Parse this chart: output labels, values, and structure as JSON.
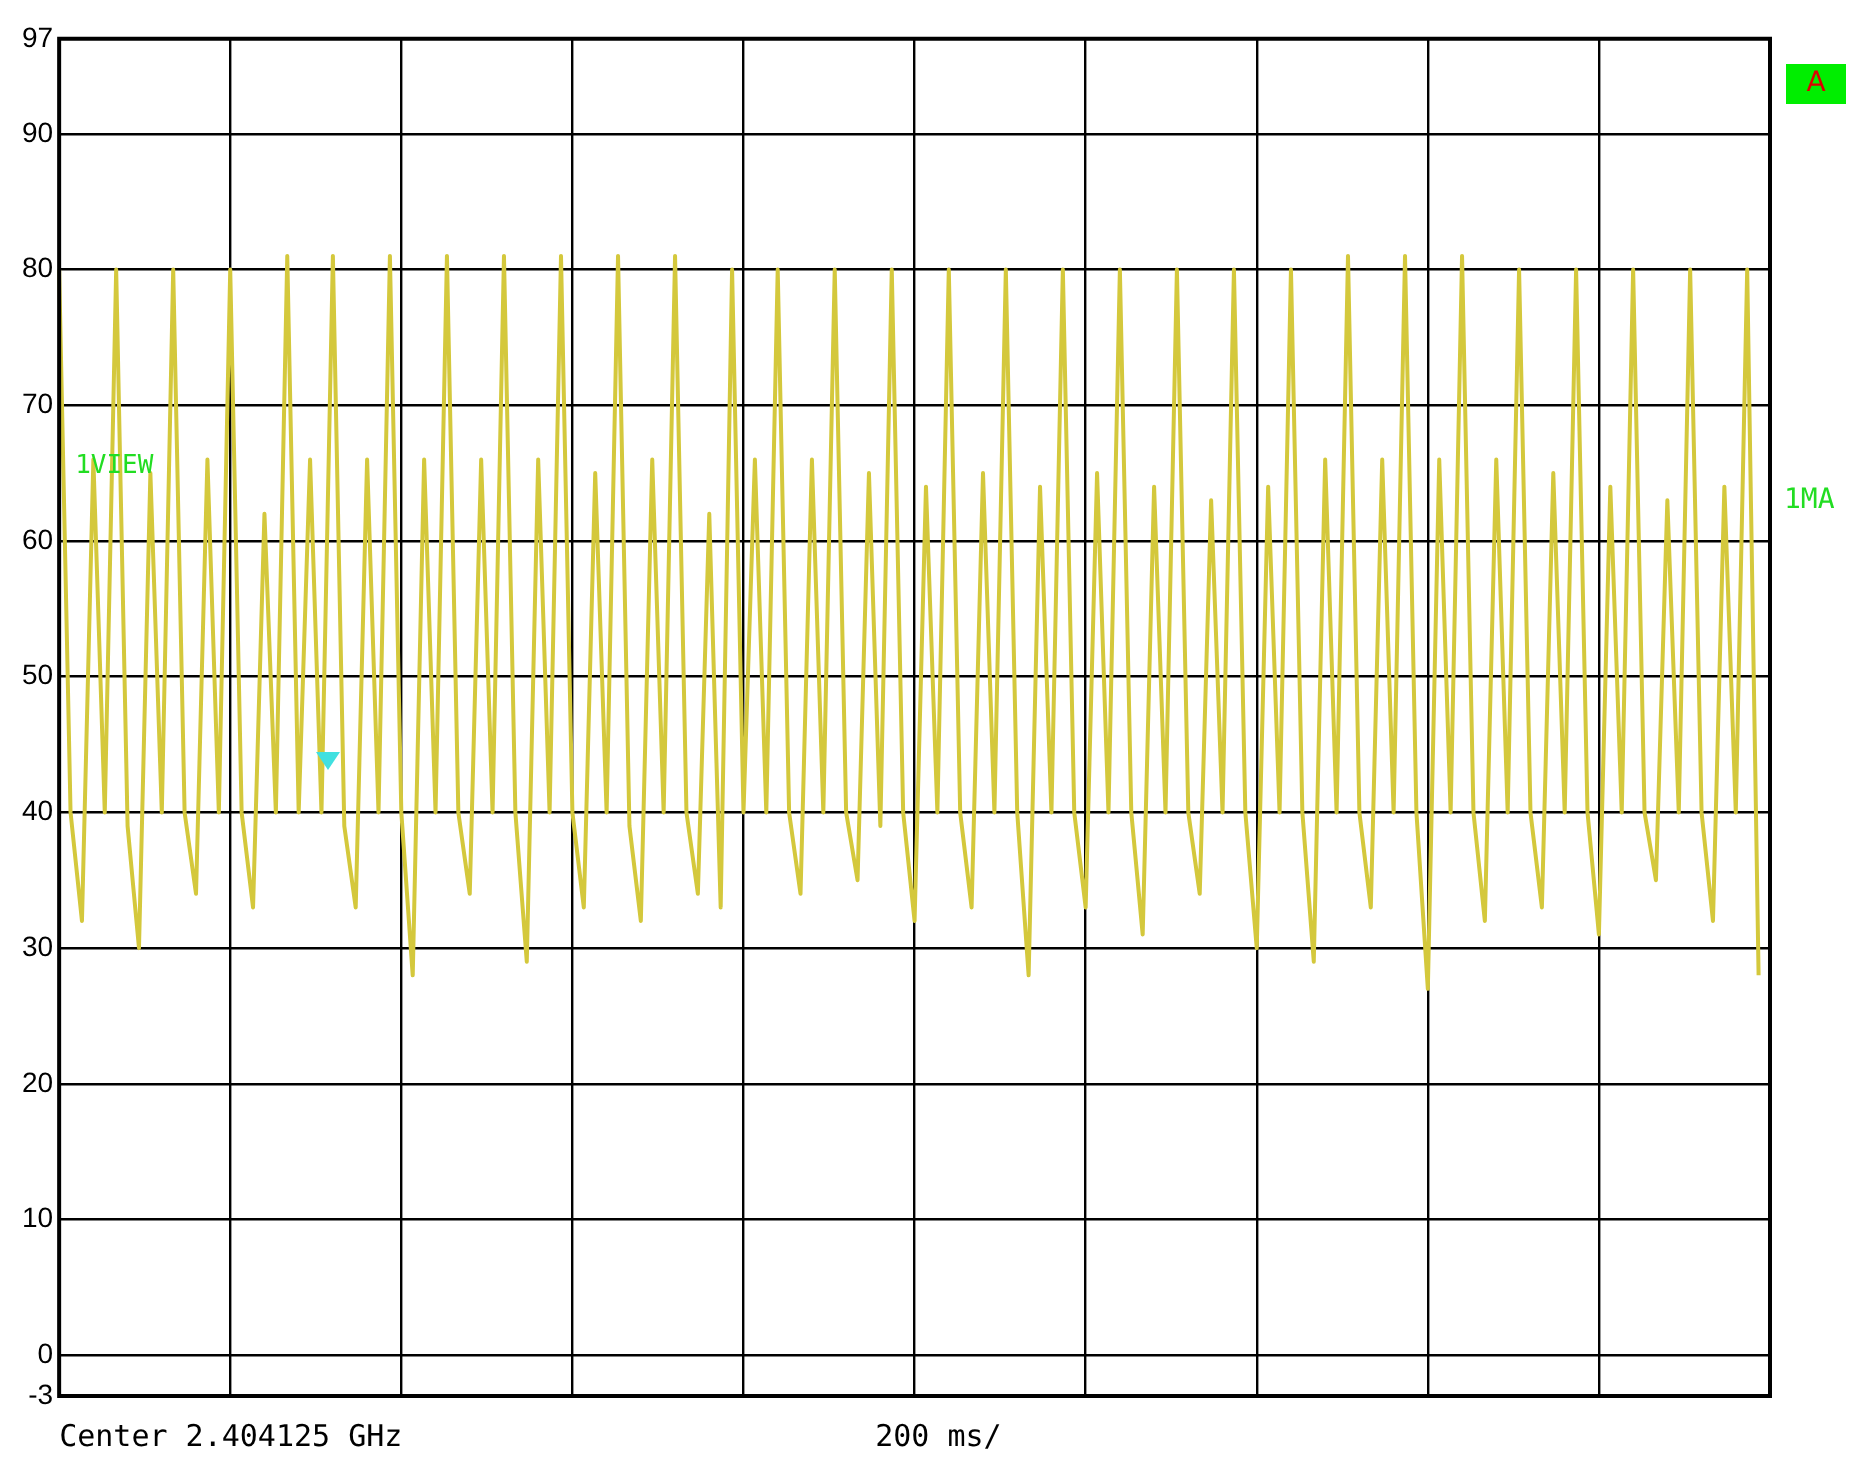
{
  "chart_data": {
    "type": "line",
    "annotations": [
      "Center 2.404125 GHz",
      "200 ms/",
      "1VIEW",
      "1MA",
      "A"
    ],
    "categories": [
      null,
      null,
      null,
      null,
      null,
      null,
      null,
      null,
      null,
      null,
      null,
      null,
      null,
      null,
      null,
      null,
      null,
      null,
      null,
      null,
      null,
      null,
      null,
      null,
      null,
      null,
      null,
      null,
      null,
      null,
      null,
      null,
      null,
      null,
      null,
      null,
      null,
      null,
      null,
      null,
      null,
      null,
      null,
      null,
      null,
      null,
      null,
      null,
      null,
      null,
      null,
      null,
      null,
      null,
      null,
      null,
      null,
      null,
      null,
      null,
      null,
      null,
      null,
      null,
      null,
      null,
      null,
      null,
      null,
      null,
      null,
      null,
      null,
      null,
      null,
      null,
      null,
      null,
      null,
      null,
      null,
      null,
      null,
      null,
      null,
      null,
      null,
      null,
      null,
      null,
      null,
      null,
      null,
      null,
      null,
      null,
      null,
      null,
      null,
      null,
      null,
      null,
      null,
      null,
      null,
      null,
      null,
      null,
      null,
      null,
      null,
      null,
      null,
      null,
      null,
      null,
      null,
      null,
      null,
      null,
      null,
      null,
      null,
      null,
      null,
      null,
      null,
      null,
      null,
      null,
      null,
      null,
      null,
      null,
      null,
      null,
      null,
      null,
      null,
      null,
      null,
      null,
      null,
      null,
      null,
      null,
      null,
      null,
      null,
      null,
      null
    ],
    "ylim": [
      -3,
      97
    ],
    "yticks": [
      -3,
      0,
      10,
      20,
      30,
      40,
      50,
      60,
      70,
      80,
      90,
      97
    ],
    "grid": true,
    "tick_labels": "y",
    "marker": "none",
    "line_style": "solid",
    "series": [
      {
        "color": "#d4c83c",
        "values": [
          80,
          40,
          32,
          66,
          40,
          80,
          39,
          30,
          65,
          40,
          80,
          40,
          34,
          66,
          40,
          80,
          40,
          33,
          62,
          40,
          81,
          40,
          66,
          40,
          81,
          39,
          33,
          66,
          40,
          81,
          40,
          28,
          66,
          40,
          81,
          40,
          34,
          66,
          40,
          81,
          40,
          29,
          66,
          40,
          81,
          40,
          33,
          65,
          40,
          81,
          39,
          32,
          66,
          40,
          81,
          40,
          34,
          62,
          33,
          80,
          40,
          66,
          40,
          80,
          40,
          34,
          66,
          40,
          80,
          40,
          35,
          65,
          39,
          80,
          40,
          32,
          64,
          40,
          80,
          40,
          33,
          65,
          40,
          80,
          40,
          28,
          64,
          40,
          80,
          40,
          33,
          65,
          40,
          80,
          40,
          31,
          64,
          40,
          80,
          40,
          34,
          63,
          40,
          80,
          40,
          30,
          64,
          40,
          80,
          40,
          29,
          66,
          40,
          81,
          40,
          33,
          66,
          40,
          81,
          40,
          27,
          66,
          40,
          81,
          40,
          32,
          66,
          40,
          80,
          40,
          33,
          65,
          40,
          80,
          40,
          31,
          64,
          40,
          80,
          40,
          35,
          63,
          40,
          80,
          40,
          32,
          64,
          40,
          80,
          28,
          null
        ]
      }
    ]
  }
}
